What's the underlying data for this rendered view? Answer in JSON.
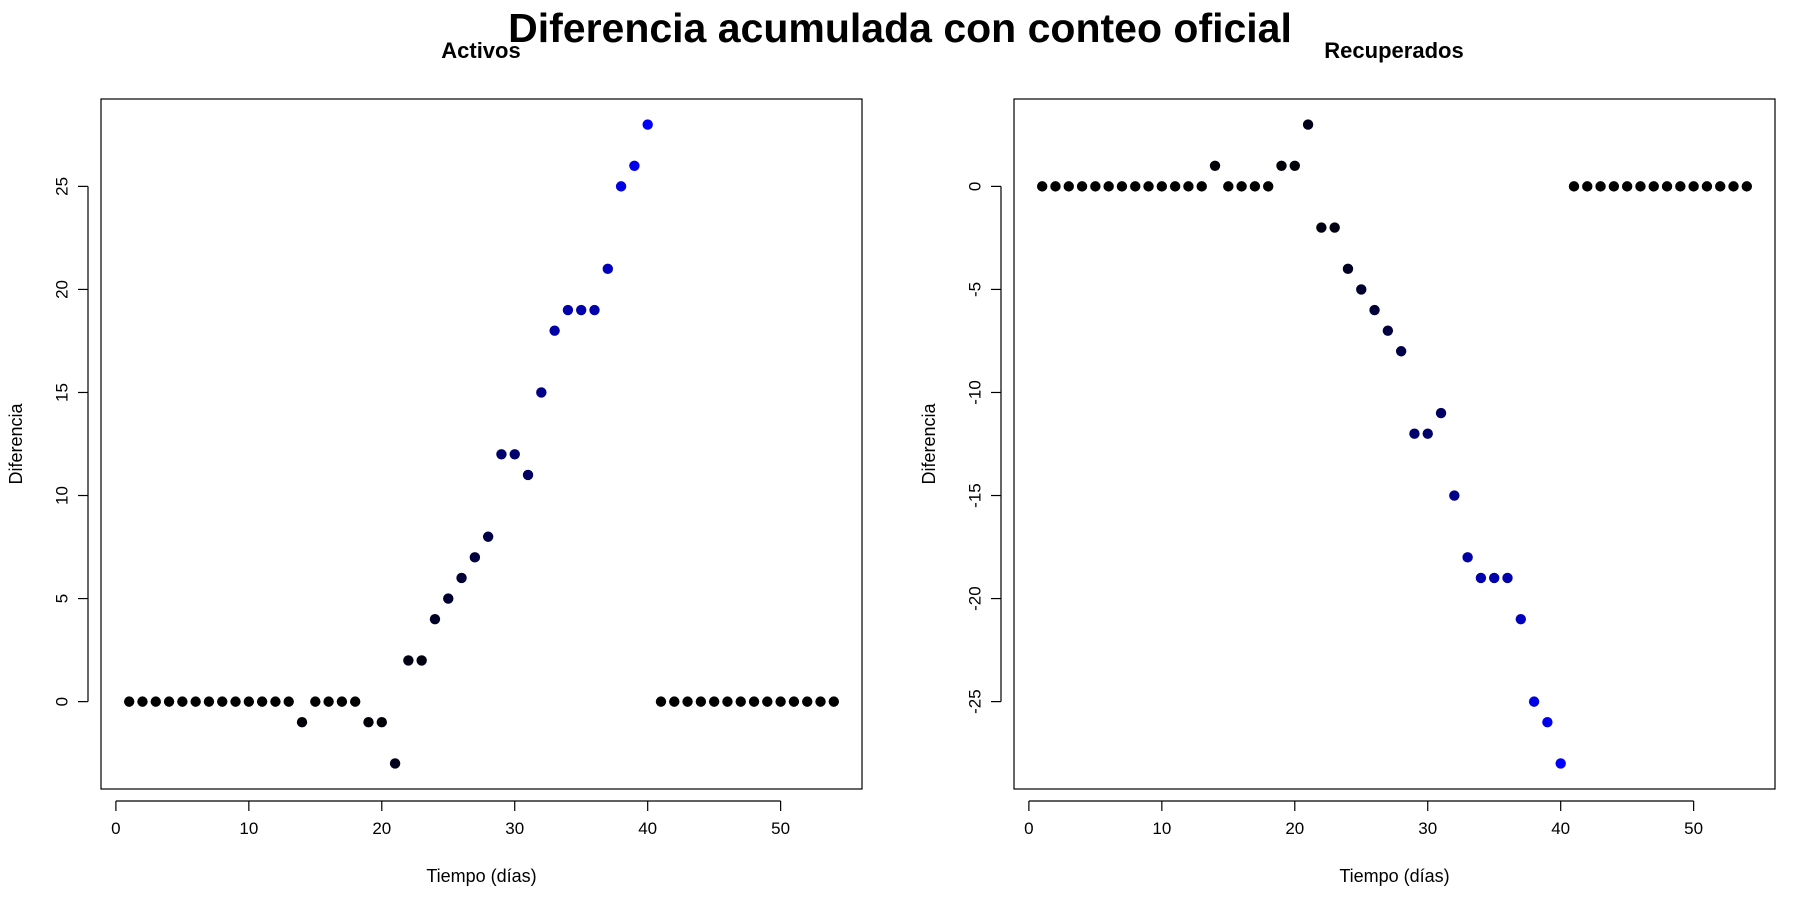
{
  "figure": {
    "title": "Diferencia acumulada con conteo oficial"
  },
  "colors": {
    "background": "#ffffff",
    "axis": "#000000",
    "point_low": "#000000",
    "point_high": "#0000ff"
  },
  "chart_data": [
    {
      "type": "scatter",
      "title": "Activos",
      "xlabel": "Tiempo (días)",
      "ylabel": "Diferencia",
      "xlim": [
        -1.12,
        56.12
      ],
      "ylim": [
        -4.24,
        29.24
      ],
      "xticks": [
        0,
        10,
        20,
        30,
        40,
        50
      ],
      "yticks": [
        0,
        5,
        10,
        15,
        20,
        25
      ],
      "grid": false,
      "legend": "none",
      "color_scale": "black to blue by absolute value",
      "x": [
        1,
        2,
        3,
        4,
        5,
        6,
        7,
        8,
        9,
        10,
        11,
        12,
        13,
        14,
        15,
        16,
        17,
        18,
        19,
        20,
        21,
        22,
        23,
        24,
        25,
        26,
        27,
        28,
        29,
        30,
        31,
        32,
        33,
        34,
        35,
        36,
        37,
        38,
        39,
        40,
        41,
        42,
        43,
        44,
        45,
        46,
        47,
        48,
        49,
        50,
        51,
        52,
        53,
        54
      ],
      "y": [
        0,
        0,
        0,
        0,
        0,
        0,
        0,
        0,
        0,
        0,
        0,
        0,
        0,
        -1,
        0,
        0,
        0,
        0,
        -1,
        -1,
        -3,
        2,
        2,
        4,
        5,
        6,
        7,
        8,
        12,
        12,
        11,
        15,
        18,
        19,
        19,
        19,
        21,
        25,
        26,
        28,
        0,
        0,
        0,
        0,
        0,
        0,
        0,
        0,
        0,
        0,
        0,
        0,
        0,
        0
      ]
    },
    {
      "type": "scatter",
      "title": "Recuperados",
      "xlabel": "Tiempo (días)",
      "ylabel": "Diferencia",
      "xlim": [
        -1.12,
        56.12
      ],
      "ylim": [
        -29.24,
        4.24
      ],
      "xticks": [
        0,
        10,
        20,
        30,
        40,
        50
      ],
      "yticks": [
        0,
        -5,
        -10,
        -15,
        -20,
        -25
      ],
      "grid": false,
      "legend": "none",
      "color_scale": "black to blue by absolute value",
      "x": [
        1,
        2,
        3,
        4,
        5,
        6,
        7,
        8,
        9,
        10,
        11,
        12,
        13,
        14,
        15,
        16,
        17,
        18,
        19,
        20,
        21,
        22,
        23,
        24,
        25,
        26,
        27,
        28,
        29,
        30,
        31,
        32,
        33,
        34,
        35,
        36,
        37,
        38,
        39,
        40,
        41,
        42,
        43,
        44,
        45,
        46,
        47,
        48,
        49,
        50,
        51,
        52,
        53,
        54
      ],
      "y": [
        0,
        0,
        0,
        0,
        0,
        0,
        0,
        0,
        0,
        0,
        0,
        0,
        0,
        1,
        0,
        0,
        0,
        0,
        1,
        1,
        3,
        -2,
        -2,
        -4,
        -5,
        -6,
        -7,
        -8,
        -12,
        -12,
        -11,
        -15,
        -18,
        -19,
        -19,
        -19,
        -21,
        -25,
        -26,
        -28,
        0,
        0,
        0,
        0,
        0,
        0,
        0,
        0,
        0,
        0,
        0,
        0,
        0,
        0
      ]
    }
  ]
}
